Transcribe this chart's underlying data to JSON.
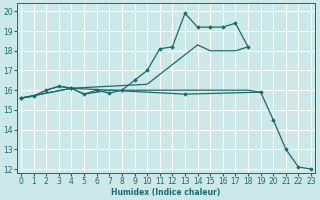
{
  "xlabel": "Humidex (Indice chaleur)",
  "xlim": [
    -0.3,
    23.3
  ],
  "ylim": [
    11.8,
    20.4
  ],
  "yticks": [
    12,
    13,
    14,
    15,
    16,
    17,
    18,
    19,
    20
  ],
  "xticks": [
    0,
    1,
    2,
    3,
    4,
    5,
    6,
    7,
    8,
    9,
    10,
    11,
    12,
    13,
    14,
    15,
    16,
    17,
    18,
    19,
    20,
    21,
    22,
    23
  ],
  "bg_color": "#cce8e8",
  "grid_color": "#ffffff",
  "line_color": "#1a6b6b",
  "line1_x": [
    0,
    1,
    2,
    3,
    4,
    5,
    6,
    7,
    8,
    9,
    10,
    11,
    12,
    13,
    14,
    15,
    16,
    17,
    18,
    19
  ],
  "line1_y": [
    15.6,
    15.7,
    16.0,
    16.2,
    16.1,
    15.8,
    15.9,
    16.0,
    16.0,
    16.0,
    16.0,
    16.0,
    16.0,
    16.0,
    16.0,
    16.0,
    16.0,
    16.0,
    16.0,
    15.9
  ],
  "line2_x": [
    0,
    1,
    2,
    3,
    4,
    5,
    6,
    7,
    8,
    9,
    10,
    11,
    12,
    13,
    14,
    15,
    16,
    17,
    18
  ],
  "line2_y": [
    15.6,
    15.7,
    16.0,
    16.2,
    16.1,
    15.8,
    16.0,
    15.85,
    16.0,
    16.5,
    17.0,
    18.1,
    18.2,
    19.9,
    19.2,
    19.2,
    19.2,
    19.4,
    18.2
  ],
  "line3_x": [
    0,
    4,
    10,
    11,
    12,
    13,
    14,
    15,
    16,
    17,
    18
  ],
  "line3_y": [
    15.6,
    16.1,
    16.3,
    16.8,
    17.3,
    17.8,
    18.3,
    18.0,
    18.0,
    18.0,
    18.2
  ],
  "line4_x": [
    0,
    4,
    13,
    19,
    20,
    21,
    22,
    23
  ],
  "line4_y": [
    15.6,
    16.1,
    15.8,
    15.9,
    14.5,
    13.0,
    12.1,
    12.0
  ]
}
